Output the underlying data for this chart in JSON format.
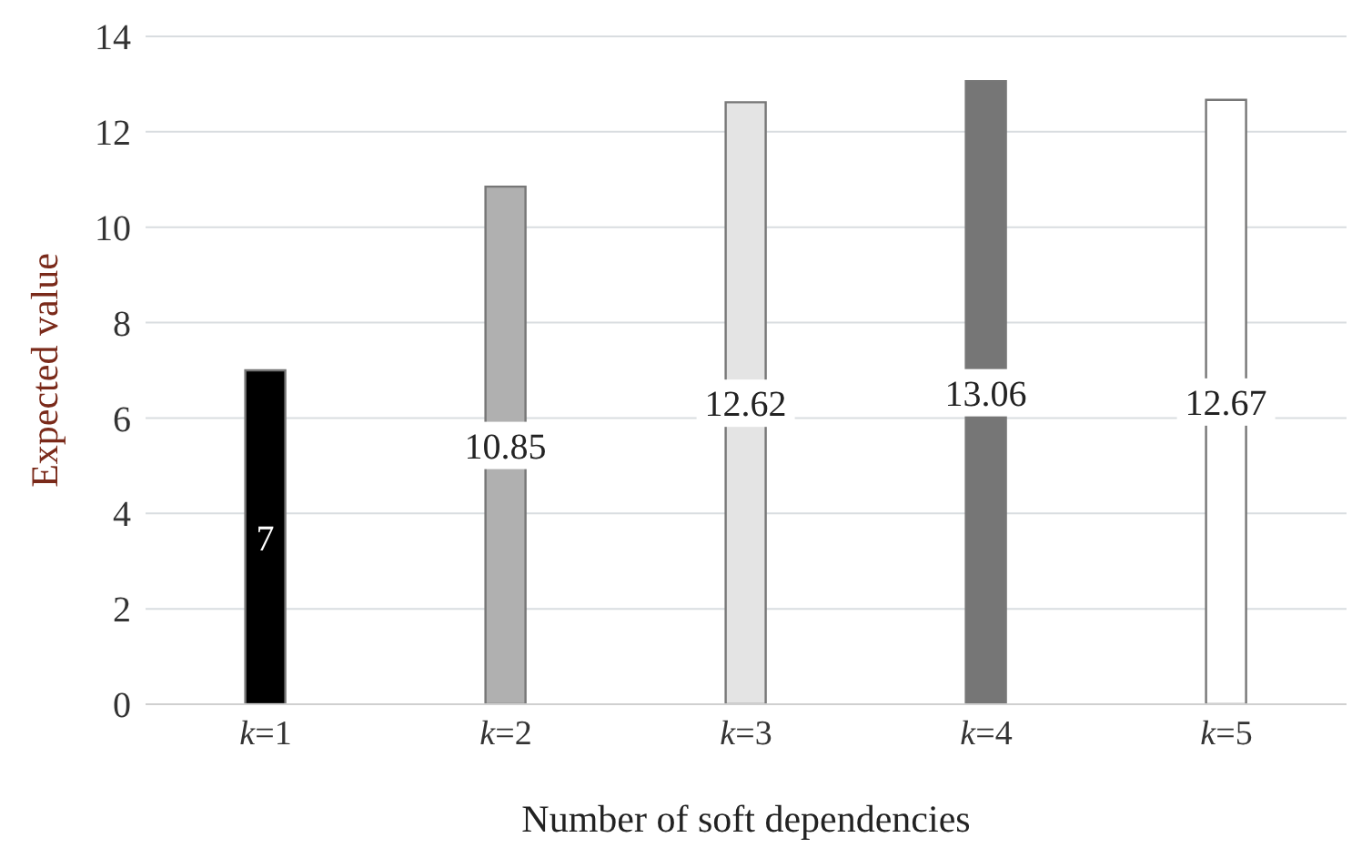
{
  "chart_data": {
    "type": "bar",
    "xlabel": "Number of soft dependencies",
    "ylabel": "Expected value",
    "categories": [
      "k=1",
      "k=2",
      "k=3",
      "k=4",
      "k=5"
    ],
    "values": [
      7,
      10.85,
      12.62,
      13.06,
      12.67
    ],
    "colors": [
      "#000000",
      "#b0b0b0",
      "#e4e4e4",
      "#767676",
      "#ffffff"
    ],
    "ylim": [
      0,
      14
    ],
    "yticks": [
      0,
      2,
      4,
      6,
      8,
      10,
      12,
      14
    ],
    "grid": "y",
    "data_labels": true
  }
}
